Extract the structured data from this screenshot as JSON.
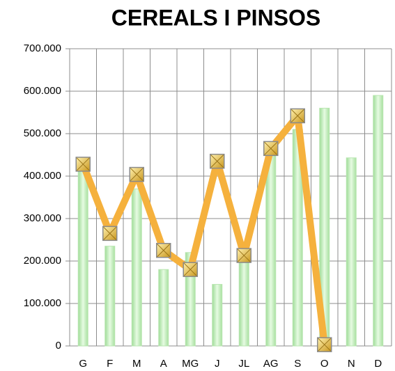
{
  "chart_data": {
    "type": "bar-line",
    "title": "CEREALS I PINSOS",
    "categories": [
      "G",
      "F",
      "M",
      "A",
      "MG",
      "J",
      "JL",
      "AG",
      "S",
      "O",
      "N",
      "D"
    ],
    "series": [
      {
        "type": "bar",
        "color": "#c4eebd",
        "values": [
          415000,
          235000,
          370000,
          180000,
          220000,
          145000,
          210000,
          480000,
          510000,
          560000,
          443000,
          590000
        ]
      },
      {
        "type": "line",
        "color": "#f5b13d",
        "values": [
          428000,
          265000,
          404000,
          225000,
          180000,
          435000,
          213000,
          465000,
          542000,
          3000,
          null,
          null
        ]
      }
    ],
    "ylim": [
      0,
      700000
    ],
    "yticks": [
      {
        "value": 0,
        "label": "0"
      },
      {
        "value": 100000,
        "label": "100.000"
      },
      {
        "value": 200000,
        "label": "200.000"
      },
      {
        "value": 300000,
        "label": "300.000"
      },
      {
        "value": 400000,
        "label": "400.000"
      },
      {
        "value": 500000,
        "label": "500.000"
      },
      {
        "value": 600000,
        "label": "600.000"
      },
      {
        "value": 700000,
        "label": "700.000"
      }
    ],
    "grid": true
  }
}
